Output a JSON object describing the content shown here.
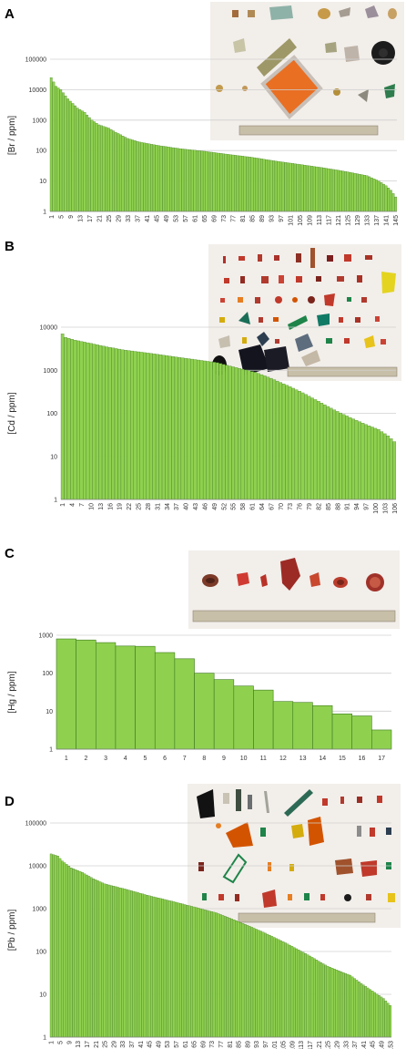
{
  "colors": {
    "bar_fill": "#8fd14f",
    "bar_stroke": "#3f7a1f",
    "grid": "#d0d0d0",
    "photo_background": "#f2eeea"
  },
  "chart_data": [
    {
      "panel": "A",
      "type": "bar",
      "yscale": "log",
      "ylim": [
        1,
        100000
      ],
      "ylabel": "[Br / ppm]",
      "yticks": [
        "1",
        "10",
        "100",
        "1000",
        "10000",
        "100000"
      ],
      "xlabel": "",
      "n": 145,
      "xtick_labels": [
        "1",
        "5",
        "9",
        "13",
        "17",
        "21",
        "25",
        "29",
        "33",
        "37",
        "41",
        "45",
        "49",
        "53",
        "57",
        "61",
        "65",
        "69",
        "73",
        "77",
        "81",
        "85",
        "89",
        "93",
        "97",
        "101",
        "105",
        "109",
        "113",
        "117",
        "121",
        "125",
        "129",
        "133",
        "137",
        "141",
        "145"
      ],
      "values_anchor": [
        [
          1,
          25000
        ],
        [
          2,
          18000
        ],
        [
          3,
          13000
        ],
        [
          5,
          10000
        ],
        [
          8,
          5000
        ],
        [
          12,
          2500
        ],
        [
          15,
          1800
        ],
        [
          18,
          1000
        ],
        [
          21,
          700
        ],
        [
          25,
          550
        ],
        [
          28,
          400
        ],
        [
          33,
          250
        ],
        [
          38,
          190
        ],
        [
          45,
          150
        ],
        [
          55,
          115
        ],
        [
          65,
          95
        ],
        [
          75,
          75
        ],
        [
          85,
          60
        ],
        [
          95,
          45
        ],
        [
          105,
          35
        ],
        [
          115,
          27
        ],
        [
          125,
          20
        ],
        [
          133,
          15
        ],
        [
          138,
          10
        ],
        [
          141,
          7
        ],
        [
          143,
          5
        ],
        [
          145,
          3
        ]
      ],
      "grid": true,
      "legend": "none"
    },
    {
      "panel": "B",
      "type": "bar",
      "yscale": "log",
      "ylim": [
        1,
        10000
      ],
      "ylabel": "[Cd / ppm]",
      "yticks": [
        "1",
        "10",
        "100",
        "1000",
        "10000"
      ],
      "xlabel": "",
      "n": 106,
      "xtick_labels": [
        "1",
        "4",
        "7",
        "10",
        "13",
        "16",
        "19",
        "22",
        "25",
        "28",
        "31",
        "34",
        "37",
        "40",
        "43",
        "46",
        "49",
        "52",
        "55",
        "58",
        "61",
        "64",
        "67",
        "70",
        "73",
        "76",
        "79",
        "82",
        "85",
        "88",
        "91",
        "94",
        "97",
        "100",
        "103",
        "106"
      ],
      "values_anchor": [
        [
          1,
          7000
        ],
        [
          2,
          5800
        ],
        [
          5,
          5000
        ],
        [
          10,
          4200
        ],
        [
          15,
          3500
        ],
        [
          20,
          3000
        ],
        [
          30,
          2400
        ],
        [
          40,
          1900
        ],
        [
          50,
          1500
        ],
        [
          57,
          1100
        ],
        [
          62,
          900
        ],
        [
          67,
          650
        ],
        [
          72,
          450
        ],
        [
          77,
          300
        ],
        [
          82,
          190
        ],
        [
          87,
          120
        ],
        [
          92,
          80
        ],
        [
          97,
          55
        ],
        [
          101,
          42
        ],
        [
          104,
          30
        ],
        [
          106,
          22
        ]
      ],
      "grid": true,
      "legend": "none"
    },
    {
      "panel": "C",
      "type": "bar",
      "yscale": "log",
      "ylim": [
        1,
        1000
      ],
      "ylabel": "[Hg / ppm]",
      "yticks": [
        "1",
        "10",
        "100",
        "1000"
      ],
      "xlabel": "",
      "categories": [
        "1",
        "2",
        "3",
        "4",
        "5",
        "6",
        "7",
        "8",
        "9",
        "10",
        "11",
        "12",
        "13",
        "14",
        "15",
        "16",
        "17"
      ],
      "values": [
        800,
        750,
        640,
        520,
        510,
        350,
        240,
        100,
        68,
        46,
        36,
        18,
        17,
        14,
        8.5,
        7.5,
        3.2
      ],
      "grid": true,
      "legend": "none"
    },
    {
      "panel": "D",
      "type": "bar",
      "yscale": "log",
      "ylim": [
        1,
        100000
      ],
      "ylabel": "[Pb / ppm]",
      "yticks": [
        "1",
        "10",
        "100",
        "1000",
        "10000",
        "100000"
      ],
      "xlabel": "",
      "n": 153,
      "xtick_labels": [
        "1",
        "5",
        "9",
        "13",
        "17",
        "21",
        "25",
        "29",
        "33",
        "37",
        "41",
        "45",
        "49",
        "53",
        "57",
        "61",
        "65",
        "69",
        "73",
        "77",
        "81",
        "85",
        "89",
        "93",
        "97",
        "101",
        "105",
        "109",
        "113",
        "117",
        "121",
        "125",
        "129",
        "133",
        "137",
        "141",
        "145",
        "149",
        "153"
      ],
      "values_anchor": [
        [
          1,
          19000
        ],
        [
          4,
          17000
        ],
        [
          6,
          13000
        ],
        [
          10,
          9000
        ],
        [
          15,
          7000
        ],
        [
          20,
          5000
        ],
        [
          25,
          3800
        ],
        [
          35,
          2800
        ],
        [
          45,
          2000
        ],
        [
          55,
          1500
        ],
        [
          65,
          1100
        ],
        [
          75,
          800
        ],
        [
          85,
          500
        ],
        [
          95,
          300
        ],
        [
          105,
          170
        ],
        [
          115,
          90
        ],
        [
          125,
          45
        ],
        [
          135,
          28
        ],
        [
          140,
          18
        ],
        [
          145,
          12
        ],
        [
          150,
          8
        ],
        [
          153,
          5.5
        ]
      ],
      "grid": true,
      "legend": "none"
    }
  ]
}
